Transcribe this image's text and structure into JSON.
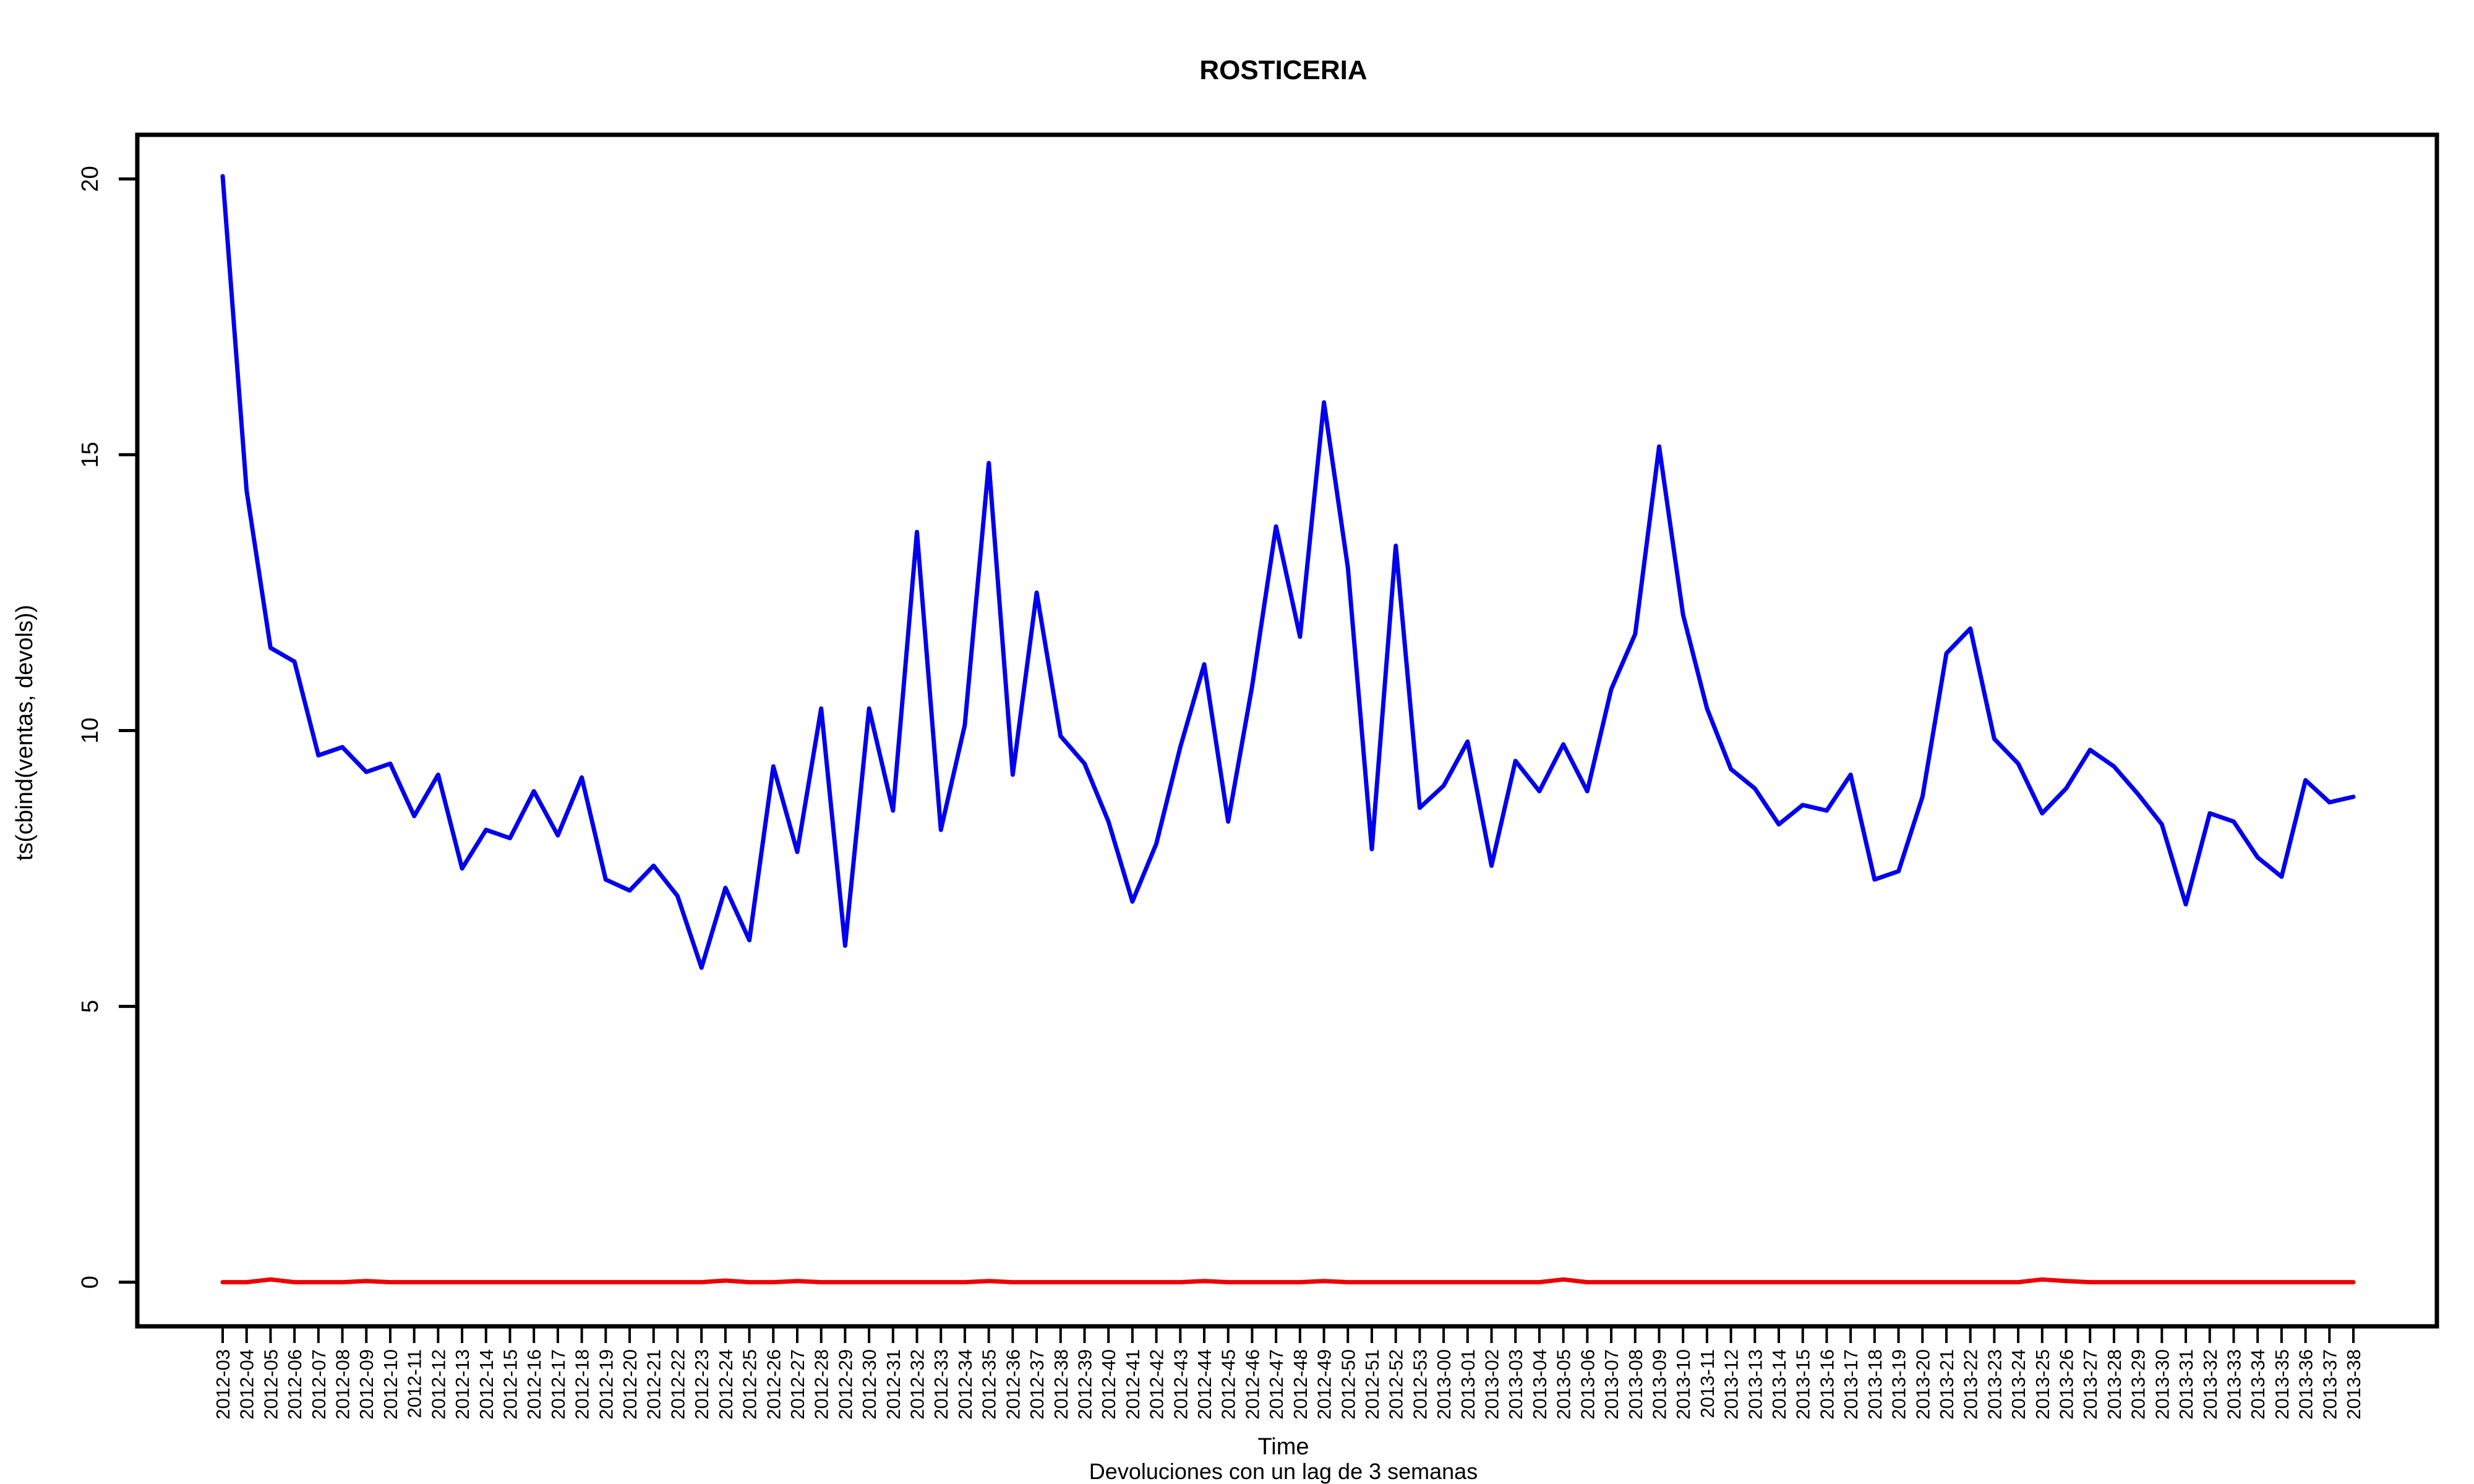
{
  "chart_data": {
    "type": "line",
    "title": "ROSTICERIA",
    "xlabel": "Time",
    "ylabel": "ts(cbind(ventas, devols))",
    "subtitle": "Devoluciones con un lag de 3 semanas",
    "ylim": [
      -0.8,
      20.8
    ],
    "yticks": [
      0,
      5,
      10,
      15,
      20
    ],
    "grid": false,
    "categories": [
      "2012-03",
      "2012-04",
      "2012-05",
      "2012-06",
      "2012-07",
      "2012-08",
      "2012-09",
      "2012-10",
      "2012-11",
      "2012-12",
      "2012-13",
      "2012-14",
      "2012-15",
      "2012-16",
      "2012-17",
      "2012-18",
      "2012-19",
      "2012-20",
      "2012-21",
      "2012-22",
      "2012-23",
      "2012-24",
      "2012-25",
      "2012-26",
      "2012-27",
      "2012-28",
      "2012-29",
      "2012-30",
      "2012-31",
      "2012-32",
      "2012-33",
      "2012-34",
      "2012-35",
      "2012-36",
      "2012-37",
      "2012-38",
      "2012-39",
      "2012-40",
      "2012-41",
      "2012-42",
      "2012-43",
      "2012-44",
      "2012-45",
      "2012-46",
      "2012-47",
      "2012-48",
      "2012-49",
      "2012-50",
      "2012-51",
      "2012-52",
      "2012-53",
      "2013-00",
      "2013-01",
      "2013-02",
      "2013-03",
      "2013-04",
      "2013-05",
      "2013-06",
      "2013-07",
      "2013-08",
      "2013-09",
      "2013-10",
      "2013-11",
      "2013-12",
      "2013-13",
      "2013-14",
      "2013-15",
      "2013-16",
      "2013-17",
      "2013-18",
      "2013-19",
      "2013-20",
      "2013-21",
      "2013-22",
      "2013-23",
      "2013-24",
      "2013-25",
      "2013-26",
      "2013-27",
      "2013-28",
      "2013-29",
      "2013-30",
      "2013-31",
      "2013-32",
      "2013-33",
      "2013-34",
      "2013-35",
      "2013-36",
      "2013-37",
      "2013-38"
    ],
    "series": [
      {
        "color": "#0000ee",
        "values": [
          20.05,
          14.35,
          11.5,
          11.25,
          9.55,
          9.7,
          9.25,
          9.4,
          8.45,
          9.2,
          7.5,
          8.2,
          8.05,
          8.9,
          8.1,
          9.15,
          7.3,
          7.1,
          7.55,
          7.0,
          5.7,
          7.15,
          6.2,
          9.35,
          7.8,
          10.4,
          6.1,
          10.4,
          8.55,
          13.6,
          8.2,
          10.1,
          14.85,
          9.2,
          12.5,
          9.9,
          9.4,
          8.35,
          6.9,
          7.95,
          9.7,
          11.2,
          8.35,
          10.8,
          13.7,
          11.7,
          15.95,
          12.95,
          7.85,
          13.35,
          8.6,
          9.0,
          9.8,
          7.55,
          9.45,
          8.9,
          9.75,
          8.9,
          10.75,
          11.75,
          15.15,
          12.1,
          10.4,
          9.3,
          8.95,
          8.3,
          8.65,
          8.55,
          9.2,
          7.3,
          7.45,
          8.8,
          11.4,
          11.85,
          9.85,
          9.4,
          8.5,
          8.95,
          9.65,
          9.35,
          8.85,
          8.3,
          6.85,
          8.5,
          8.35,
          7.7,
          7.35,
          9.1,
          8.7,
          8.8
        ]
      },
      {
        "color": "#ee0000",
        "values": [
          0,
          0,
          0.05,
          0,
          0,
          0,
          0.02,
          0,
          0,
          0,
          0,
          0,
          0,
          0,
          0,
          0,
          0,
          0,
          0,
          0,
          0,
          0.03,
          0,
          0,
          0.02,
          0,
          0,
          0,
          0,
          0,
          0,
          0,
          0.02,
          0,
          0,
          0,
          0,
          0,
          0,
          0,
          0,
          0.02,
          0,
          0,
          0,
          0,
          0.02,
          0,
          0,
          0,
          0,
          0,
          0,
          0,
          0,
          0,
          0.05,
          0,
          0,
          0,
          0,
          0,
          0,
          0,
          0,
          0,
          0,
          0,
          0,
          0,
          0,
          0,
          0,
          0,
          0,
          0,
          0.05,
          0.02,
          0,
          0,
          0,
          0,
          0,
          0,
          0,
          0,
          0,
          0,
          0,
          0
        ]
      }
    ]
  }
}
